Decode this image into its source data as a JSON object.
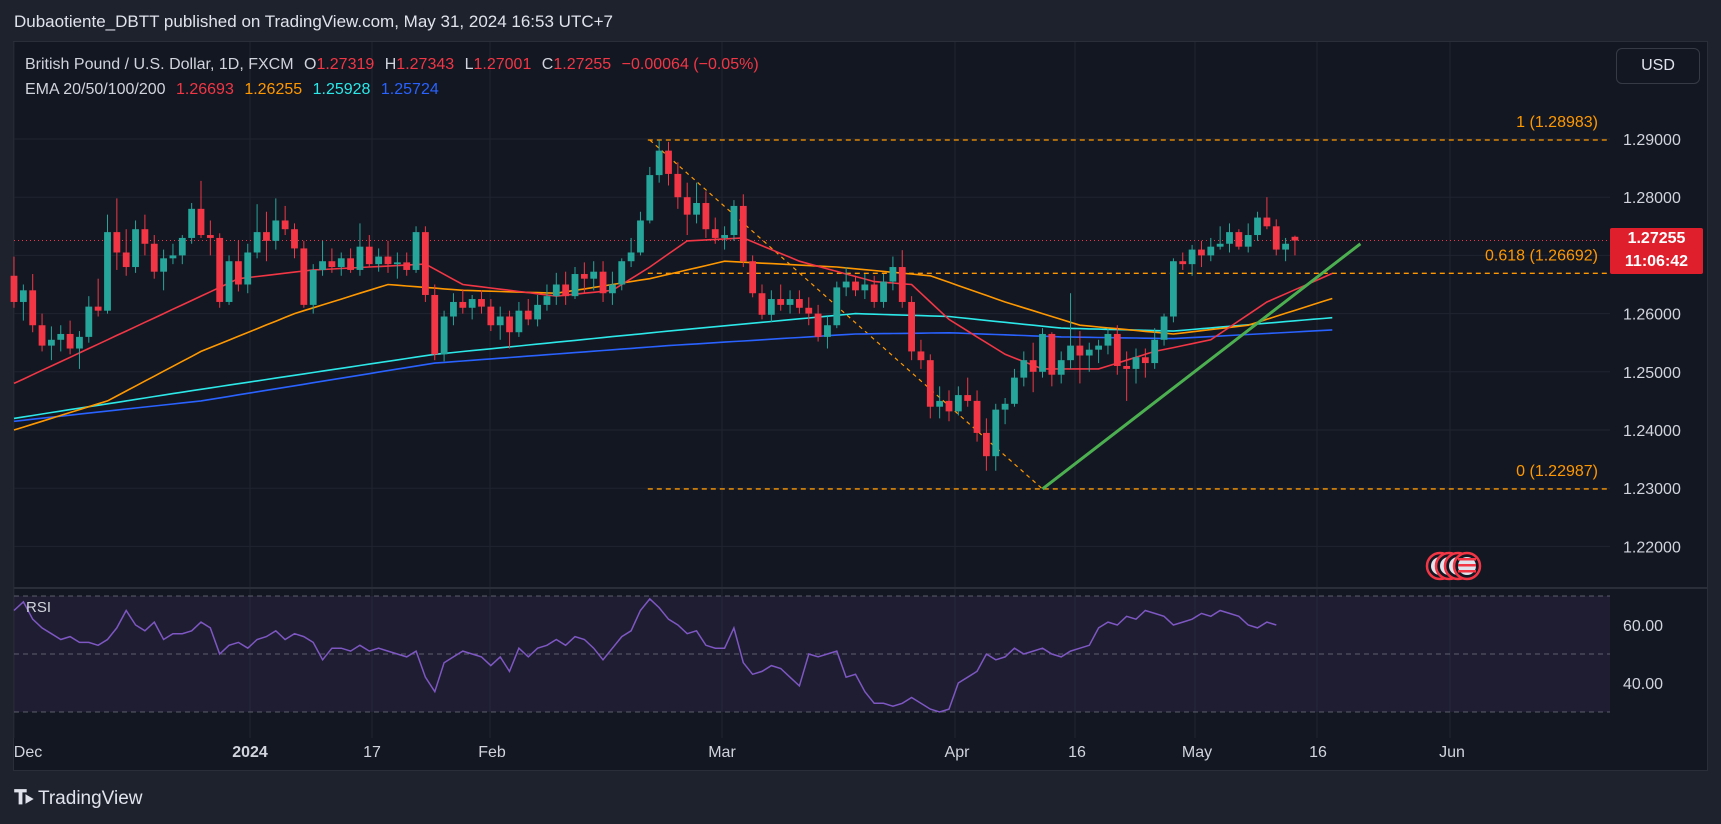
{
  "caption": "Dubaotiente_DBTT published on TradingView.com, May 31, 2024 16:53 UTC+7",
  "legend": {
    "symbol": "British Pound / U.S. Dollar, 1D, FXCM",
    "o_label": "O",
    "o_value": "1.27319",
    "h_label": "H",
    "h_value": "1.27343",
    "l_label": "L",
    "l_value": "1.27001",
    "c_label": "C",
    "c_value": "1.27255",
    "change": "−0.00064 (−0.05%)",
    "ema_label": "EMA 20/50/100/200",
    "ema20": "1.26693",
    "ema50": "1.26255",
    "ema100": "1.25928",
    "ema200": "1.25724"
  },
  "currency_button": "USD",
  "price_tag": {
    "price": "1.27255",
    "countdown": "11:06:42"
  },
  "fib_labels": {
    "level_1": "1 (1.28983)",
    "level_0618": "0.618 (1.26692)",
    "level_0": "0 (1.22987)"
  },
  "rsi_label": "RSI",
  "footer_brand": "TradingView",
  "colors": {
    "up": "#26a69a",
    "down": "#f23645",
    "ema20": "#f23645",
    "ema50": "#ff9800",
    "ema100": "#2ce8e8",
    "ema200": "#2962ff",
    "fib": "#ff9800",
    "trendline": "#4caf50",
    "rsi": "#7e57c2"
  },
  "chart_data": {
    "type": "candlestick",
    "price_axis": {
      "ticks": [
        "1.29000",
        "1.28000",
        "1.27000",
        "1.26000",
        "1.25000",
        "1.24000",
        "1.23000",
        "1.22000"
      ],
      "range": [
        1.2135,
        1.2975
      ]
    },
    "time_axis": {
      "ticks": [
        "Dec",
        "2024",
        "17",
        "Feb",
        "Mar",
        "Apr",
        "16",
        "May",
        "16",
        "Jun"
      ]
    },
    "rsi_axis": {
      "ticks": [
        "60.00",
        "40.00"
      ],
      "bands": [
        30,
        50,
        70
      ]
    },
    "last_price": 1.27255,
    "candles": [
      [
        1.2665,
        1.2698,
        1.261,
        1.262
      ],
      [
        1.262,
        1.265,
        1.2588,
        1.264
      ],
      [
        1.264,
        1.2668,
        1.2568,
        1.258
      ],
      [
        1.258,
        1.26,
        1.2535,
        1.2545
      ],
      [
        1.2545,
        1.2578,
        1.252,
        1.2555
      ],
      [
        1.2555,
        1.258,
        1.2535,
        1.2565
      ],
      [
        1.2565,
        1.2588,
        1.253,
        1.254
      ],
      [
        1.254,
        1.257,
        1.2505,
        1.256
      ],
      [
        1.256,
        1.263,
        1.255,
        1.2612
      ],
      [
        1.2612,
        1.266,
        1.2595,
        1.2605
      ],
      [
        1.2605,
        1.277,
        1.26,
        1.274
      ],
      [
        1.274,
        1.2798,
        1.2675,
        1.2705
      ],
      [
        1.2705,
        1.2745,
        1.2665,
        1.268
      ],
      [
        1.268,
        1.276,
        1.267,
        1.2745
      ],
      [
        1.2745,
        1.277,
        1.27,
        1.272
      ],
      [
        1.272,
        1.2735,
        1.266,
        1.2672
      ],
      [
        1.2672,
        1.271,
        1.264,
        1.2695
      ],
      [
        1.2695,
        1.272,
        1.2685,
        1.27
      ],
      [
        1.27,
        1.2735,
        1.2685,
        1.273
      ],
      [
        1.273,
        1.279,
        1.272,
        1.278
      ],
      [
        1.278,
        1.2828,
        1.273,
        1.2735
      ],
      [
        1.2735,
        1.276,
        1.27,
        1.273
      ],
      [
        1.273,
        1.2738,
        1.261,
        1.262
      ],
      [
        1.262,
        1.27,
        1.2615,
        1.269
      ],
      [
        1.269,
        1.2725,
        1.2638,
        1.265
      ],
      [
        1.265,
        1.272,
        1.2635,
        1.2705
      ],
      [
        1.2705,
        1.2788,
        1.2695,
        1.274
      ],
      [
        1.274,
        1.2775,
        1.269,
        1.2725
      ],
      [
        1.2725,
        1.2798,
        1.271,
        1.276
      ],
      [
        1.276,
        1.2785,
        1.2735,
        1.2745
      ],
      [
        1.2745,
        1.2755,
        1.2695,
        1.2712
      ],
      [
        1.2712,
        1.2725,
        1.261,
        1.2615
      ],
      [
        1.2615,
        1.2685,
        1.26,
        1.2675
      ],
      [
        1.2675,
        1.2725,
        1.2665,
        1.269
      ],
      [
        1.269,
        1.2712,
        1.267,
        1.268
      ],
      [
        1.268,
        1.2705,
        1.2665,
        1.2695
      ],
      [
        1.2695,
        1.2712,
        1.267,
        1.2675
      ],
      [
        1.2675,
        1.2755,
        1.2665,
        1.2715
      ],
      [
        1.2715,
        1.2735,
        1.268,
        1.2685
      ],
      [
        1.2685,
        1.2712,
        1.2672,
        1.2698
      ],
      [
        1.2698,
        1.2725,
        1.267,
        1.2685
      ],
      [
        1.2685,
        1.2705,
        1.266,
        1.2688
      ],
      [
        1.2688,
        1.2705,
        1.2665,
        1.2675
      ],
      [
        1.2675,
        1.275,
        1.267,
        1.274
      ],
      [
        1.274,
        1.275,
        1.262,
        1.2632
      ],
      [
        1.2632,
        1.265,
        1.252,
        1.253
      ],
      [
        1.253,
        1.2605,
        1.2518,
        1.2595
      ],
      [
        1.2595,
        1.2635,
        1.258,
        1.262
      ],
      [
        1.262,
        1.2642,
        1.26,
        1.261
      ],
      [
        1.261,
        1.2632,
        1.259,
        1.2625
      ],
      [
        1.2625,
        1.264,
        1.26,
        1.2612
      ],
      [
        1.2612,
        1.2625,
        1.257,
        1.258
      ],
      [
        1.258,
        1.2612,
        1.2555,
        1.2595
      ],
      [
        1.2595,
        1.2605,
        1.254,
        1.2568
      ],
      [
        1.2568,
        1.262,
        1.256,
        1.2605
      ],
      [
        1.2605,
        1.2625,
        1.258,
        1.259
      ],
      [
        1.259,
        1.2632,
        1.2578,
        1.2615
      ],
      [
        1.2615,
        1.265,
        1.2605,
        1.263
      ],
      [
        1.263,
        1.267,
        1.2615,
        1.265
      ],
      [
        1.265,
        1.2672,
        1.2615,
        1.263
      ],
      [
        1.263,
        1.268,
        1.2625,
        1.2668
      ],
      [
        1.2668,
        1.2688,
        1.2635,
        1.266
      ],
      [
        1.266,
        1.269,
        1.264,
        1.2672
      ],
      [
        1.2672,
        1.269,
        1.262,
        1.2635
      ],
      [
        1.2635,
        1.2672,
        1.2615,
        1.265
      ],
      [
        1.265,
        1.2695,
        1.264,
        1.269
      ],
      [
        1.269,
        1.273,
        1.268,
        1.2705
      ],
      [
        1.2705,
        1.2775,
        1.27,
        1.276
      ],
      [
        1.276,
        1.2852,
        1.2755,
        1.2838
      ],
      [
        1.2838,
        1.2898,
        1.2825,
        1.288
      ],
      [
        1.288,
        1.2895,
        1.282,
        1.284
      ],
      [
        1.284,
        1.286,
        1.278,
        1.28
      ],
      [
        1.28,
        1.2825,
        1.2735,
        1.277
      ],
      [
        1.277,
        1.2825,
        1.2755,
        1.279
      ],
      [
        1.279,
        1.281,
        1.273,
        1.2745
      ],
      [
        1.2745,
        1.2765,
        1.272,
        1.273
      ],
      [
        1.273,
        1.275,
        1.271,
        1.2735
      ],
      [
        1.2735,
        1.2795,
        1.2725,
        1.2785
      ],
      [
        1.2785,
        1.2805,
        1.268,
        1.269
      ],
      [
        1.269,
        1.27,
        1.2628,
        1.2635
      ],
      [
        1.2635,
        1.265,
        1.259,
        1.2598
      ],
      [
        1.2598,
        1.264,
        1.2585,
        1.2625
      ],
      [
        1.2625,
        1.265,
        1.2605,
        1.2615
      ],
      [
        1.2615,
        1.264,
        1.26,
        1.2625
      ],
      [
        1.2625,
        1.264,
        1.26,
        1.261
      ],
      [
        1.261,
        1.2628,
        1.258,
        1.26
      ],
      [
        1.26,
        1.2615,
        1.2552,
        1.256
      ],
      [
        1.256,
        1.2595,
        1.254,
        1.258
      ],
      [
        1.258,
        1.2655,
        1.2575,
        1.2645
      ],
      [
        1.2645,
        1.268,
        1.263,
        1.2655
      ],
      [
        1.2655,
        1.2665,
        1.263,
        1.264
      ],
      [
        1.264,
        1.2668,
        1.2625,
        1.265
      ],
      [
        1.265,
        1.2665,
        1.261,
        1.262
      ],
      [
        1.262,
        1.2668,
        1.261,
        1.2655
      ],
      [
        1.2655,
        1.2698,
        1.264,
        1.268
      ],
      [
        1.268,
        1.2709,
        1.261,
        1.262
      ],
      [
        1.262,
        1.263,
        1.252,
        1.2535
      ],
      [
        1.2535,
        1.2555,
        1.2505,
        1.252
      ],
      [
        1.252,
        1.253,
        1.242,
        1.244
      ],
      [
        1.244,
        1.2475,
        1.242,
        1.245
      ],
      [
        1.245,
        1.2468,
        1.2415,
        1.2432
      ],
      [
        1.2432,
        1.2475,
        1.2425,
        1.246
      ],
      [
        1.246,
        1.249,
        1.244,
        1.245
      ],
      [
        1.245,
        1.2468,
        1.238,
        1.2395
      ],
      [
        1.2395,
        1.242,
        1.233,
        1.2355
      ],
      [
        1.2355,
        1.2445,
        1.233,
        1.2435
      ],
      [
        1.2435,
        1.2455,
        1.241,
        1.2445
      ],
      [
        1.2445,
        1.2505,
        1.244,
        1.249
      ],
      [
        1.249,
        1.2535,
        1.2475,
        1.252
      ],
      [
        1.252,
        1.255,
        1.2465,
        1.25
      ],
      [
        1.25,
        1.2575,
        1.249,
        1.2565
      ],
      [
        1.2565,
        1.2568,
        1.2475,
        1.2495
      ],
      [
        1.2495,
        1.2535,
        1.248,
        1.252
      ],
      [
        1.252,
        1.2635,
        1.2505,
        1.2545
      ],
      [
        1.2545,
        1.257,
        1.248,
        1.2528
      ],
      [
        1.2528,
        1.255,
        1.25,
        1.2538
      ],
      [
        1.2538,
        1.2555,
        1.2515,
        1.2545
      ],
      [
        1.2545,
        1.2575,
        1.253,
        1.2565
      ],
      [
        1.2565,
        1.258,
        1.2495,
        1.251
      ],
      [
        1.251,
        1.2535,
        1.245,
        1.2505
      ],
      [
        1.2505,
        1.254,
        1.248,
        1.2525
      ],
      [
        1.2525,
        1.254,
        1.249,
        1.2515
      ],
      [
        1.2515,
        1.2575,
        1.2505,
        1.2555
      ],
      [
        1.2555,
        1.26,
        1.2545,
        1.2595
      ],
      [
        1.2595,
        1.2695,
        1.2585,
        1.269
      ],
      [
        1.269,
        1.2705,
        1.2675,
        1.2685
      ],
      [
        1.2685,
        1.2718,
        1.2665,
        1.271
      ],
      [
        1.271,
        1.2725,
        1.268,
        1.27
      ],
      [
        1.27,
        1.273,
        1.269,
        1.2715
      ],
      [
        1.2715,
        1.275,
        1.271,
        1.272
      ],
      [
        1.272,
        1.2755,
        1.2705,
        1.274
      ],
      [
        1.274,
        1.2745,
        1.271,
        1.2715
      ],
      [
        1.2715,
        1.2755,
        1.2705,
        1.2735
      ],
      [
        1.2735,
        1.2775,
        1.2725,
        1.2765
      ],
      [
        1.2765,
        1.28,
        1.2745,
        1.275
      ],
      [
        1.275,
        1.2762,
        1.27,
        1.271
      ],
      [
        1.271,
        1.273,
        1.269,
        1.272
      ],
      [
        1.2732,
        1.2734,
        1.27,
        1.27255
      ]
    ],
    "ema20": [
      [
        0,
        1.248
      ],
      [
        8,
        1.254
      ],
      [
        16,
        1.26
      ],
      [
        24,
        1.266
      ],
      [
        32,
        1.2675
      ],
      [
        44,
        1.2685
      ],
      [
        48,
        1.265
      ],
      [
        58,
        1.263
      ],
      [
        64,
        1.264
      ],
      [
        68,
        1.268
      ],
      [
        72,
        1.2725
      ],
      [
        78,
        1.273
      ],
      [
        84,
        1.269
      ],
      [
        92,
        1.2655
      ],
      [
        96,
        1.265
      ],
      [
        100,
        1.259
      ],
      [
        106,
        1.253
      ],
      [
        110,
        1.2505
      ],
      [
        116,
        1.2505
      ],
      [
        122,
        1.2535
      ],
      [
        128,
        1.2555
      ],
      [
        134,
        1.262
      ],
      [
        141,
        1.2669
      ]
    ],
    "ema50": [
      [
        0,
        1.24
      ],
      [
        10,
        1.245
      ],
      [
        20,
        1.2535
      ],
      [
        30,
        1.26
      ],
      [
        40,
        1.265
      ],
      [
        48,
        1.264
      ],
      [
        58,
        1.2635
      ],
      [
        68,
        1.266
      ],
      [
        76,
        1.269
      ],
      [
        88,
        1.268
      ],
      [
        98,
        1.2665
      ],
      [
        106,
        1.262
      ],
      [
        114,
        1.258
      ],
      [
        124,
        1.2565
      ],
      [
        132,
        1.258
      ],
      [
        141,
        1.2626
      ]
    ],
    "ema100": [
      [
        0,
        1.242
      ],
      [
        20,
        1.247
      ],
      [
        45,
        1.253
      ],
      [
        70,
        1.257
      ],
      [
        90,
        1.26
      ],
      [
        100,
        1.2595
      ],
      [
        112,
        1.2575
      ],
      [
        124,
        1.257
      ],
      [
        141,
        1.2593
      ]
    ],
    "ema200": [
      [
        0,
        1.2415
      ],
      [
        20,
        1.245
      ],
      [
        45,
        1.2515
      ],
      [
        70,
        1.2545
      ],
      [
        90,
        1.2565
      ],
      [
        100,
        1.2567
      ],
      [
        112,
        1.256
      ],
      [
        124,
        1.2557
      ],
      [
        141,
        1.2572
      ]
    ],
    "fibonacci": {
      "high": 1.28983,
      "low": 1.22987,
      "level_0618": 1.26692,
      "high_index": 68,
      "low_index": 110
    },
    "trendline": {
      "from": [
        110,
        1.22987
      ],
      "to": [
        144,
        1.272
      ]
    },
    "rsi": [
      65,
      68,
      62,
      59,
      57,
      55,
      56,
      54,
      54,
      53,
      55,
      59,
      65,
      60,
      58,
      61,
      55,
      57,
      57,
      58,
      61,
      59,
      50,
      53,
      54,
      52,
      55,
      56,
      58,
      55,
      57,
      56,
      54,
      48,
      52,
      52,
      51,
      53,
      51,
      52,
      51,
      50,
      49,
      51,
      42,
      37,
      47,
      49,
      51,
      50,
      49,
      46,
      49,
      44,
      52,
      49,
      52,
      53,
      55,
      53,
      56,
      55,
      52,
      48,
      52,
      56,
      58,
      65,
      69,
      66,
      62,
      60,
      57,
      58,
      53,
      52,
      52,
      59,
      47,
      43,
      44,
      46,
      45,
      42,
      39,
      50,
      49,
      50,
      51,
      42,
      43,
      37,
      33,
      33,
      32,
      33,
      35,
      33,
      31,
      30,
      31,
      40,
      42,
      44,
      50,
      48,
      49,
      52,
      50,
      51,
      52,
      50,
      49,
      51,
      52,
      53,
      59,
      61,
      60,
      63,
      62,
      65,
      64,
      63,
      60,
      61,
      62,
      64,
      63,
      65,
      64,
      63,
      60,
      59,
      61,
      60
    ]
  }
}
